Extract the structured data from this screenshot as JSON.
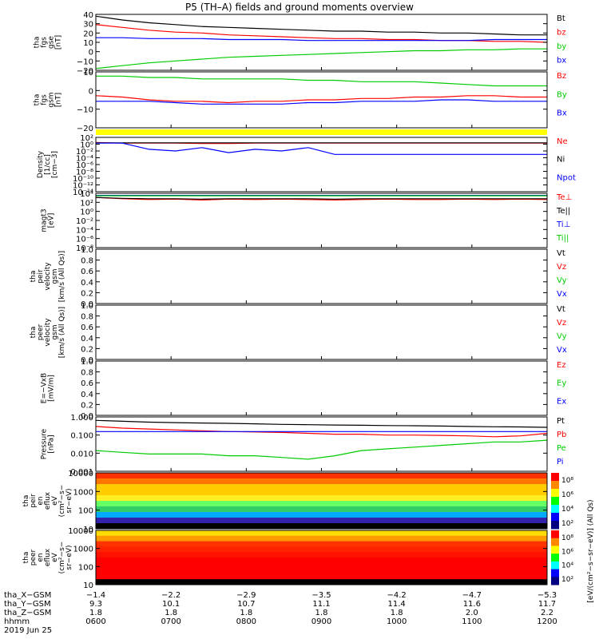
{
  "title": "P5 (TH–A) fields and ground moments overview",
  "chart_data": [
    {
      "id": "fgs-gse",
      "type": "line",
      "ylabel_lines": [
        "tha",
        "fgs",
        "gse",
        "[nT]"
      ],
      "ticks": [
        "40",
        "30",
        "20",
        "10",
        "0",
        "−10",
        "−20"
      ],
      "ylim": [
        -20,
        40
      ],
      "series": [
        {
          "name": "Bt",
          "color": "#000000",
          "values": [
            38,
            34,
            31,
            29,
            27,
            26,
            25,
            24,
            23,
            22,
            22,
            21,
            21,
            20,
            20,
            19,
            18,
            18
          ]
        },
        {
          "name": "bz",
          "color": "#ff0000",
          "values": [
            29,
            26,
            23,
            21,
            20,
            18,
            17,
            16,
            15,
            14,
            14,
            13,
            13,
            12,
            12,
            11,
            11,
            10
          ]
        },
        {
          "name": "by",
          "color": "#00cc00",
          "values": [
            -18,
            -15,
            -12,
            -10,
            -8,
            -6,
            -5,
            -4,
            -3,
            -2,
            -1,
            0,
            1,
            1,
            2,
            2,
            3,
            3
          ]
        },
        {
          "name": "bx",
          "color": "#0000ff",
          "values": [
            15,
            15,
            14,
            14,
            14,
            13,
            13,
            13,
            12,
            12,
            12,
            12,
            12,
            12,
            12,
            13,
            13,
            13
          ]
        }
      ]
    },
    {
      "id": "fgs-gsm",
      "type": "line",
      "ylabel_lines": [
        "tha",
        "fgs",
        "gsm",
        "[nT]"
      ],
      "ticks": [
        "10",
        "0",
        "−10",
        "−20"
      ],
      "ylim": [
        -25,
        15
      ],
      "series": [
        {
          "name": "Bz",
          "color": "#ff0000",
          "values": [
            -2,
            -3,
            -5,
            -6,
            -6,
            -7,
            -6,
            -6,
            -5,
            -5,
            -4,
            -4,
            -3,
            -3,
            -2,
            -2,
            -3,
            -3
          ]
        },
        {
          "name": "By",
          "color": "#00cc00",
          "values": [
            12,
            12,
            11,
            11,
            10,
            10,
            10,
            10,
            9,
            9,
            8,
            8,
            8,
            7,
            6,
            5,
            5,
            5
          ]
        },
        {
          "name": "Bx",
          "color": "#0000ff",
          "values": [
            -6,
            -6,
            -6,
            -7,
            -8,
            -8,
            -8,
            -8,
            -7,
            -7,
            -6,
            -6,
            -6,
            -5,
            -5,
            -6,
            -6,
            -6
          ]
        }
      ]
    },
    {
      "id": "density",
      "type": "line",
      "log": true,
      "ylabel_lines": [
        "Density",
        "[1/cc]",
        "[cm−3]"
      ],
      "ticks": [
        "10²",
        "10⁰",
        "10⁻²",
        "10⁻⁴",
        "10⁻⁶",
        "10⁻⁸",
        "10⁻¹⁰",
        "10⁻¹²",
        "10⁻¹⁴"
      ],
      "ylim": [
        -14,
        2
      ],
      "series": [
        {
          "name": "Ne",
          "color": "#ff0000",
          "values": [
            0.5,
            0.3,
            0.3,
            0.3,
            0.2,
            0.2,
            0.3,
            0.3,
            0.3,
            0.3,
            0.3,
            0.3,
            0.3,
            0.3,
            0.3,
            0.3,
            0.3,
            0.3
          ]
        },
        {
          "name": "Ni",
          "color": "#000000",
          "values": [
            0.4,
            0.4,
            0.4,
            0.4,
            0.4,
            0.4,
            0.4,
            0.4,
            0.4,
            0.4,
            0.4,
            0.4,
            0.4,
            0.4,
            0.4,
            0.4,
            0.4,
            0.4
          ]
        },
        {
          "name": "Npot",
          "color": "#0000ff",
          "values": [
            0.3,
            0.3,
            -1.5,
            -2,
            -1,
            -2.5,
            -1.5,
            -2,
            -1,
            -3,
            -3,
            -3,
            -3,
            -3,
            -3,
            -3,
            -3,
            -3
          ]
        }
      ]
    },
    {
      "id": "magt3",
      "type": "line",
      "log": true,
      "ylabel_lines": [
        "magt3",
        "[eV]"
      ],
      "ticks": [
        "10⁴",
        "10²",
        "10⁰",
        "10⁻²",
        "10⁻⁴",
        "10⁻⁶",
        "10⁻⁸"
      ],
      "ylim": [
        -9,
        4
      ],
      "series": [
        {
          "name": "Te⊥",
          "color": "#ff0000",
          "values": [
            3,
            2.7,
            2.5,
            2.6,
            2.4,
            2.6,
            2.5,
            2.6,
            2.5,
            2.4,
            2.5,
            2.6,
            2.5,
            2.5,
            2.6,
            2.5,
            2.6,
            2.5
          ]
        },
        {
          "name": "Te||",
          "color": "#000000",
          "values": [
            3,
            2.8,
            2.7,
            2.7,
            2.6,
            2.7,
            2.7,
            2.7,
            2.7,
            2.6,
            2.7,
            2.7,
            2.7,
            2.7,
            2.7,
            2.7,
            2.7,
            2.7
          ]
        },
        {
          "name": "Ti⊥",
          "color": "#0000ff",
          "values": [
            3.5,
            3.5,
            3.5,
            3.5,
            3.5,
            3.5,
            3.5,
            3.5,
            3.5,
            3.5,
            3.5,
            3.5,
            3.5,
            3.5,
            3.5,
            3.5,
            3.5,
            3.5
          ]
        },
        {
          "name": "Ti||",
          "color": "#00cc00",
          "values": [
            3.4,
            3.4,
            3.4,
            3.4,
            3.4,
            3.4,
            3.4,
            3.4,
            3.4,
            3.4,
            3.4,
            3.4,
            3.4,
            3.4,
            3.4,
            3.4,
            3.4,
            3.4
          ]
        }
      ]
    },
    {
      "id": "peir-velocity",
      "type": "line",
      "ylabel_lines": [
        "tha",
        "peir",
        "velocity",
        "gsm",
        "[km/s (All Qs)]"
      ],
      "ticks": [
        "1.0",
        "0.8",
        "0.6",
        "0.4",
        "0.2",
        "0.0"
      ],
      "ylim": [
        0,
        1
      ],
      "series": [
        {
          "name": "Vt",
          "color": "#000000",
          "values": []
        },
        {
          "name": "Vz",
          "color": "#ff0000",
          "values": []
        },
        {
          "name": "Vy",
          "color": "#00cc00",
          "values": []
        },
        {
          "name": "Vx",
          "color": "#0000ff",
          "values": []
        }
      ]
    },
    {
      "id": "peer-velocity",
      "type": "line",
      "ylabel_lines": [
        "tha",
        "peer",
        "velocity",
        "gsm",
        "[km/s (All Qs)]"
      ],
      "ticks": [
        "1.0",
        "0.8",
        "0.6",
        "0.4",
        "0.2",
        "0.0"
      ],
      "ylim": [
        0,
        1
      ],
      "series": [
        {
          "name": "Vt",
          "color": "#000000",
          "values": []
        },
        {
          "name": "Vz",
          "color": "#ff0000",
          "values": []
        },
        {
          "name": "Vy",
          "color": "#00cc00",
          "values": []
        },
        {
          "name": "Vx",
          "color": "#0000ff",
          "values": []
        }
      ]
    },
    {
      "id": "efield",
      "type": "line",
      "ylabel_lines": [
        "E=−VxB",
        "[mV/m]"
      ],
      "ticks": [
        "1.0",
        "0.8",
        "0.6",
        "0.4",
        "0.2",
        "0.0"
      ],
      "ylim": [
        0,
        1
      ],
      "series": [
        {
          "name": "Ez",
          "color": "#ff0000",
          "values": []
        },
        {
          "name": "Ey",
          "color": "#00cc00",
          "values": []
        },
        {
          "name": "Ex",
          "color": "#0000ff",
          "values": []
        }
      ]
    },
    {
      "id": "pressure",
      "type": "line",
      "log": true,
      "ylabel_lines": [
        "Pressure",
        "[nPa]"
      ],
      "ticks": [
        "1.000",
        "0.100",
        "0.010",
        "0.001"
      ],
      "ylim": [
        -3,
        0.15
      ],
      "series": [
        {
          "name": "Pt",
          "color": "#000000",
          "values": [
            -0.05,
            -0.1,
            -0.15,
            -0.18,
            -0.2,
            -0.22,
            -0.25,
            -0.28,
            -0.3,
            -0.32,
            -0.33,
            -0.35,
            -0.36,
            -0.38,
            -0.4,
            -0.42,
            -0.43,
            -0.45
          ]
        },
        {
          "name": "Pb",
          "color": "#ff0000",
          "values": [
            -0.4,
            -0.5,
            -0.55,
            -0.6,
            -0.65,
            -0.7,
            -0.72,
            -0.75,
            -0.8,
            -0.85,
            -0.85,
            -0.9,
            -0.9,
            -0.92,
            -0.95,
            -1,
            -0.95,
            -0.8
          ]
        },
        {
          "name": "Pe",
          "color": "#00cc00",
          "values": [
            -1.8,
            -1.9,
            -2,
            -2,
            -2,
            -2.1,
            -2.1,
            -2.2,
            -2.3,
            -2.1,
            -1.8,
            -1.7,
            -1.6,
            -1.5,
            -1.4,
            -1.3,
            -1.3,
            -1.2
          ]
        },
        {
          "name": "Pi",
          "color": "#0000ff",
          "values": [
            -0.7,
            -0.7,
            -0.7,
            -0.7,
            -0.7,
            -0.7,
            -0.7,
            -0.7,
            -0.7,
            -0.7,
            -0.7,
            -0.7,
            -0.7,
            -0.7,
            -0.7,
            -0.7,
            -0.7,
            -0.7
          ]
        }
      ]
    },
    {
      "id": "peir-spectrogram",
      "type": "heatmap",
      "ylabel_lines": [
        "tha",
        "peir",
        "en",
        "eflux",
        "eV",
        "(cm²−s−",
        "sr−eV)"
      ],
      "ticks": [
        "10000",
        "1000",
        "100",
        "10"
      ],
      "colorbar_ticks": [
        "10⁸",
        "10⁶",
        "10⁴",
        "10²"
      ]
    },
    {
      "id": "peer-spectrogram",
      "type": "heatmap",
      "ylabel_lines": [
        "tha",
        "peer",
        "en",
        "eflux",
        "eV",
        "(cm²−s−",
        "sr−eV)"
      ],
      "ticks": [
        "10000",
        "1000",
        "100",
        "10"
      ],
      "colorbar_ticks": [
        "10⁸",
        "10⁶",
        "10⁴",
        "10²"
      ]
    }
  ],
  "colorbar_label": "[eV/(cm²−s−sr−eV)] (All Qs)",
  "ephemeris": {
    "labels": [
      "tha_X−GSM",
      "tha_Y−GSM",
      "tha_Z−GSM",
      "hhmm",
      "2019 Jun 25"
    ],
    "columns": [
      [
        "−1.4",
        "9.3",
        "1.8",
        "0600"
      ],
      [
        "−2.2",
        "10.1",
        "1.8",
        "0700"
      ],
      [
        "−2.9",
        "10.7",
        "1.8",
        "0800"
      ],
      [
        "−3.5",
        "11.1",
        "1.8",
        "0900"
      ],
      [
        "−4.2",
        "11.4",
        "1.8",
        "1000"
      ],
      [
        "−4.7",
        "11.6",
        "2.0",
        "1100"
      ],
      [
        "−5.3",
        "11.7",
        "2.2",
        "1200"
      ]
    ]
  }
}
